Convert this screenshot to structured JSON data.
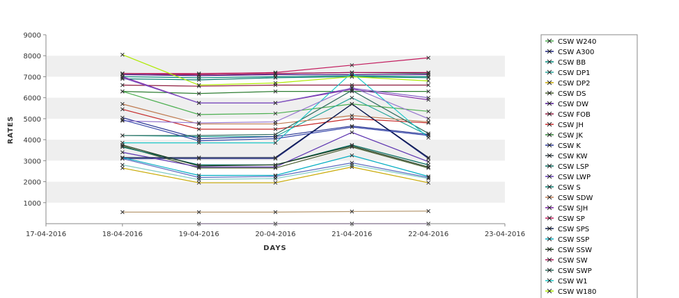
{
  "chart_data": {
    "type": "line",
    "xlabel": "DAYS",
    "ylabel": "RATES",
    "x_ticks": [
      "17-04-2016",
      "18-04-2016",
      "19-04-2016",
      "20-04-2016",
      "21-04-2016",
      "22-04-2016",
      "23-04-2016"
    ],
    "x_points": [
      "18-04-2016",
      "19-04-2016",
      "20-04-2016",
      "21-04-2016",
      "22-04-2016"
    ],
    "xlim": [
      "17-04-2016",
      "23-04-2016"
    ],
    "ylim": [
      0,
      9000
    ],
    "y_ticks": [
      1000,
      2000,
      3000,
      4000,
      5000,
      6000,
      7000,
      8000,
      9000
    ],
    "grid": "horizontal alternating bands",
    "legend_position": "right",
    "series": [
      {
        "name": "CSW  W240",
        "color": "#4caf50",
        "values": [
          6300,
          5200,
          5250,
          5700,
          5350
        ]
      },
      {
        "name": "CSW A300",
        "color": "#1a237e",
        "values": [
          3100,
          3100,
          3100,
          5700,
          3100
        ]
      },
      {
        "name": "CSW BB",
        "color": "#00897b",
        "values": [
          7000,
          6950,
          7000,
          7050,
          7000
        ]
      },
      {
        "name": "CSW DP1",
        "color": "#26a69a",
        "values": [
          4200,
          4150,
          4150,
          6000,
          4200
        ]
      },
      {
        "name": "CSW DP2",
        "color": "#c8a800",
        "values": [
          2650,
          1950,
          1950,
          2700,
          1950
        ]
      },
      {
        "name": "CSW DS",
        "color": "#455a2a",
        "values": [
          3700,
          2650,
          2650,
          3650,
          2650
        ]
      },
      {
        "name": "CSW DW",
        "color": "#4a148c",
        "values": [
          7100,
          7050,
          7100,
          7100,
          7100
        ]
      },
      {
        "name": "CSW FOB",
        "color": "#8d1b3d",
        "values": [
          6600,
          6550,
          6600,
          6600,
          6600
        ]
      },
      {
        "name": "CSW JH",
        "color": "#c62828",
        "values": [
          5450,
          4500,
          4500,
          5000,
          4800
        ]
      },
      {
        "name": "CSW JK",
        "color": "#2e7d32",
        "values": [
          6300,
          6200,
          6300,
          6300,
          6300
        ]
      },
      {
        "name": "CSW K",
        "color": "#283593",
        "values": [
          5050,
          4050,
          4150,
          4650,
          4250
        ]
      },
      {
        "name": "CSW KW",
        "color": "#37474f",
        "values": [
          7150,
          7100,
          7150,
          7200,
          7150
        ]
      },
      {
        "name": "CSW LSP",
        "color": "#00695c",
        "values": [
          3650,
          2800,
          2800,
          3750,
          2800
        ]
      },
      {
        "name": "CSW LWP",
        "color": "#5e35b1",
        "values": [
          3400,
          2700,
          2700,
          4350,
          2950
        ]
      },
      {
        "name": "CSW S",
        "color": "#00796b",
        "values": [
          6900,
          6850,
          6950,
          7000,
          6950
        ]
      },
      {
        "name": "CSW SDW",
        "color": "#bf7a50",
        "values": [
          5700,
          4750,
          4750,
          5150,
          4850
        ]
      },
      {
        "name": "CSW SJH",
        "color": "#7b1fa2",
        "values": [
          7000,
          5750,
          5750,
          6400,
          5900
        ]
      },
      {
        "name": "CSW SP",
        "color": "#c2185b",
        "values": [
          7150,
          7150,
          7200,
          7550,
          7900
        ]
      },
      {
        "name": "CSW SPS",
        "color": "#0d1b4b",
        "values": [
          3150,
          3150,
          3150,
          5700,
          3150
        ]
      },
      {
        "name": "CSW SSP",
        "color": "#00acc1",
        "values": [
          3150,
          2300,
          2300,
          3250,
          2250
        ]
      },
      {
        "name": "CSW SSW",
        "color": "#1b3a1b",
        "values": [
          3750,
          2750,
          2800,
          3700,
          2700
        ]
      },
      {
        "name": "CSW SW",
        "color": "#ad1457",
        "values": [
          7150,
          7100,
          7150,
          7200,
          7200
        ]
      },
      {
        "name": "CSW SWP",
        "color": "#2e6b5e",
        "values": [
          4200,
          4200,
          4250,
          6350,
          4300
        ]
      },
      {
        "name": "CSW W1",
        "color": "#1ec8c8",
        "values": [
          3850,
          3850,
          3850,
          7200,
          4100
        ]
      },
      {
        "name": "CSW W180",
        "color": "#aeea00",
        "values": [
          8050,
          6600,
          6700,
          7000,
          6800
        ]
      },
      {
        "name": "",
        "color": "#6a1b9a",
        "values": [
          null,
          0,
          0,
          0,
          0
        ]
      },
      {
        "name": "",
        "color": "#b89a72",
        "values": [
          550,
          550,
          550,
          580,
          600
        ]
      },
      {
        "name": "",
        "color": "#9575cd",
        "values": [
          4900,
          4800,
          4850,
          6500,
          5000
        ]
      },
      {
        "name": "",
        "color": "#80cbc4",
        "values": [
          2800,
          2100,
          2150,
          2800,
          2150
        ]
      },
      {
        "name": "",
        "color": "#3949ab",
        "values": [
          4950,
          3950,
          4050,
          4600,
          4200
        ]
      },
      {
        "name": "",
        "color": "#7e57c2",
        "values": [
          6950,
          5750,
          5750,
          6450,
          6000
        ]
      },
      {
        "name": "",
        "color": "#5c6bc0",
        "values": [
          3100,
          2200,
          2250,
          2900,
          2200
        ]
      }
    ]
  }
}
